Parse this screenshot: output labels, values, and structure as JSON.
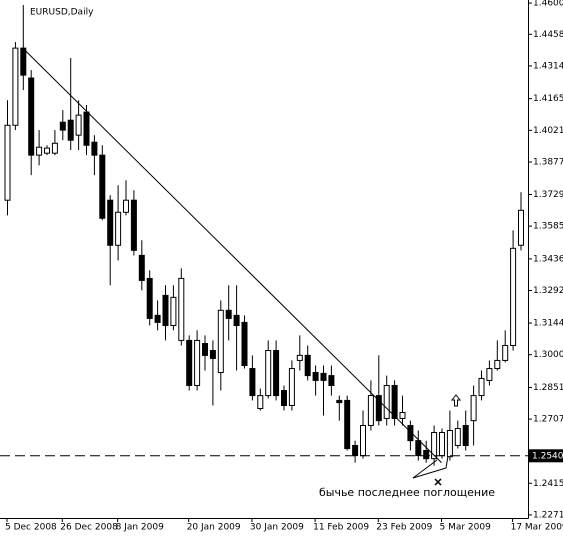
{
  "chart_data": {
    "type": "candlestick",
    "title": "EURUSD,Daily",
    "categories": [
      "5 Dec 2008",
      null,
      null,
      null,
      null,
      null,
      null,
      "26 Dec 2008",
      null,
      null,
      null,
      null,
      null,
      null,
      "8 Jan 2009",
      null,
      null,
      null,
      null,
      null,
      null,
      null,
      null,
      "20 Jan 2009",
      null,
      null,
      null,
      null,
      null,
      null,
      null,
      "30 Jan 2009",
      null,
      null,
      null,
      null,
      null,
      null,
      null,
      "11 Feb 2009",
      null,
      null,
      null,
      null,
      null,
      null,
      null,
      "23 Feb 2009",
      null,
      null,
      null,
      null,
      null,
      null,
      null,
      "5 Mar 2009",
      null,
      null,
      null,
      null,
      null,
      null,
      null,
      null,
      "17 Mar 2009",
      null
    ],
    "open": [
      1.3703,
      1.4044,
      1.4395,
      1.4259,
      1.3908,
      1.3917,
      1.3917,
      1.4058,
      1.4067,
      1.3999,
      1.4104,
      1.3967,
      1.3908,
      1.3703,
      1.3498,
      1.3648,
      1.3703,
      1.3452,
      1.3347,
      1.3179,
      1.327,
      1.3133,
      1.3065,
      1.3065,
      1.286,
      1.3051,
      1.3019,
      1.2919,
      1.3202,
      1.3179,
      1.3147,
      1.2937,
      1.2755,
      1.2814,
      1.3019,
      1.2837,
      1.2769,
      1.2974,
      1.2997,
      1.2919,
      1.2915,
      1.2905,
      1.2792,
      1.2792,
      1.2587,
      1.2541,
      1.2678,
      1.2814,
      1.271,
      1.286,
      1.271,
      1.2678,
      1.2609,
      1.2564,
      1.2527,
      1.2541,
      1.2536,
      1.2587,
      1.2678,
      1.27,
      1.2814,
      1.2883,
      1.2937,
      1.2974,
      1.3042,
      1.3498
    ],
    "high": [
      1.4158,
      1.4423,
      1.4591,
      1.4295,
      1.4022,
      1.3953,
      1.4022,
      1.4113,
      1.435,
      1.4158,
      1.4136,
      1.3999,
      1.3953,
      1.3726,
      1.3771,
      1.3794,
      1.3748,
      1.3521,
      1.3384,
      1.3247,
      1.3316,
      1.3316,
      1.3393,
      1.3088,
      1.3111,
      1.3088,
      1.3065,
      1.3247,
      1.3316,
      1.3316,
      1.3179,
      1.2997,
      1.2846,
      1.3065,
      1.3065,
      1.286,
      1.2974,
      1.3088,
      1.3042,
      1.2951,
      1.2951,
      1.2951,
      1.2814,
      1.2814,
      1.2609,
      1.2746,
      1.2883,
      1.2997,
      1.2905,
      1.2883,
      1.2814,
      1.27,
      1.2655,
      1.2609,
      1.2678,
      1.2664,
      1.2746,
      1.27,
      1.2746,
      1.286,
      1.2928,
      1.2974,
      1.3065,
      1.3111,
      1.3566,
      1.3739
    ],
    "low": [
      1.3634,
      1.4022,
      1.4204,
      1.3817,
      1.3862,
      1.3908,
      1.3908,
      1.3976,
      1.3931,
      1.3931,
      1.3908,
      1.3817,
      1.3612,
      1.3316,
      1.3429,
      1.3634,
      1.3452,
      1.3293,
      1.3133,
      1.3111,
      1.3065,
      1.3111,
      1.3042,
      1.2837,
      1.2837,
      1.2928,
      1.2769,
      1.2837,
      1.3065,
      1.2928,
      1.2937,
      1.2792,
      1.2746,
      1.2801,
      1.2792,
      1.2746,
      1.2746,
      1.2928,
      1.2883,
      1.2814,
      1.2723,
      1.2814,
      1.27,
      1.2564,
      1.2509,
      1.2527,
      1.2655,
      1.2678,
      1.2678,
      1.2678,
      1.2678,
      1.2564,
      1.2518,
      1.2509,
      1.2495,
      1.2527,
      1.2518,
      1.2573,
      1.2564,
      1.2587,
      1.2792,
      1.286,
      1.2928,
      1.2965,
      1.3019,
      1.3475
    ],
    "close": [
      1.4044,
      1.4395,
      1.4272,
      1.3908,
      1.3944,
      1.394,
      1.3962,
      1.4022,
      1.3976,
      1.409,
      1.3953,
      1.3908,
      1.3621,
      1.3498,
      1.3648,
      1.3703,
      1.3475,
      1.3338,
      1.3165,
      1.3147,
      1.3133,
      1.3261,
      1.3347,
      1.286,
      1.3065,
      1.2997,
      1.2983,
      1.3202,
      1.3165,
      1.3133,
      1.2951,
      1.2814,
      1.2814,
      1.3019,
      1.2814,
      1.2769,
      1.2937,
      1.2997,
      1.2905,
      1.2883,
      1.2883,
      1.286,
      1.2782,
      1.2573,
      1.2541,
      1.2678,
      1.2814,
      1.27,
      1.286,
      1.271,
      1.2737,
      1.2609,
      1.2541,
      1.2527,
      1.2646,
      1.2646,
      1.2655,
      1.2664,
      1.2587,
      1.2814,
      1.2892,
      1.2937,
      1.2974,
      1.3042,
      1.3484,
      1.3657
    ],
    "up_color": "#ffffff",
    "down_color": "#000000",
    "edge_color": "#000000",
    "ylim": [
      1.2257,
      1.4614
    ],
    "yticks": [
      {
        "value": 1.46,
        "label": "1.4600"
      },
      1.4458,
      1.4314,
      1.4165,
      1.4021,
      1.3877,
      1.3729,
      1.3585,
      1.3436,
      1.3292,
      1.3144,
      {
        "value": 1.3,
        "label": "1.3000"
      },
      1.2851,
      1.2707,
      1.2415,
      1.2271
    ],
    "price_line": {
      "value": 1.254,
      "label": "1.2540"
    },
    "trend_line": {
      "start_index": 2,
      "start_price": 1.4395,
      "end_index": 55,
      "end_price": 1.2509
    },
    "annotation": "бычье последнее поглощение"
  }
}
